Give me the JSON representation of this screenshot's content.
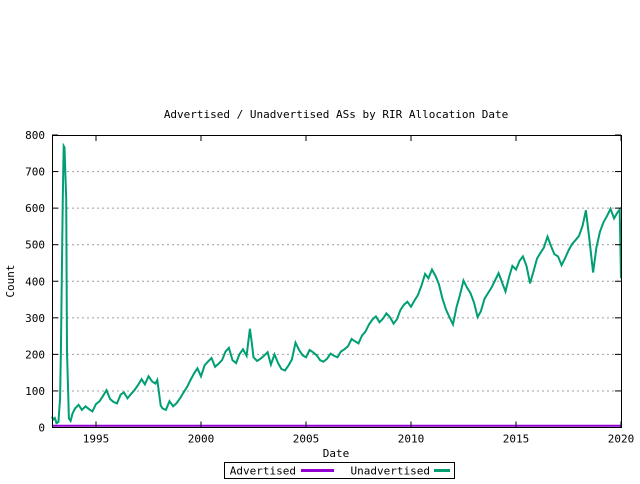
{
  "chart_data": {
    "type": "line",
    "title": "Advertised / Unadvertised ASs by RIR Allocation Date",
    "xlabel": "Date",
    "ylabel": "Count",
    "xlim": [
      1992.9,
      2020
    ],
    "ylim": [
      0,
      800
    ],
    "x_ticks": [
      1995,
      2000,
      2005,
      2010,
      2015,
      2020
    ],
    "y_ticks": [
      0,
      100,
      200,
      300,
      400,
      500,
      600,
      700,
      800
    ],
    "grid": "horizontal-dashed",
    "legend_position": "bottom-center-boxed",
    "colors": {
      "axis": "#000000",
      "grid": "#9e9e9e",
      "background": "#ffffff"
    },
    "series": [
      {
        "name": "Advertised",
        "color": "#9400d3",
        "points": [
          [
            1992.9,
            5
          ],
          [
            2020,
            5
          ]
        ]
      },
      {
        "name": "Unadvertised",
        "color": "#009e73",
        "points": [
          [
            1992.9,
            30
          ],
          [
            1992.96,
            22
          ],
          [
            1993.04,
            26
          ],
          [
            1993.12,
            12
          ],
          [
            1993.21,
            15
          ],
          [
            1993.29,
            80
          ],
          [
            1993.33,
            210
          ],
          [
            1993.42,
            630
          ],
          [
            1993.46,
            770
          ],
          [
            1993.5,
            766
          ],
          [
            1993.54,
            700
          ],
          [
            1993.58,
            628
          ],
          [
            1993.62,
            208
          ],
          [
            1993.71,
            25
          ],
          [
            1993.79,
            18
          ],
          [
            1993.88,
            38
          ],
          [
            1994.0,
            52
          ],
          [
            1994.17,
            62
          ],
          [
            1994.33,
            48
          ],
          [
            1994.5,
            58
          ],
          [
            1994.67,
            50
          ],
          [
            1994.83,
            44
          ],
          [
            1995.0,
            64
          ],
          [
            1995.17,
            72
          ],
          [
            1995.33,
            86
          ],
          [
            1995.5,
            102
          ],
          [
            1995.67,
            78
          ],
          [
            1995.83,
            70
          ],
          [
            1996.0,
            66
          ],
          [
            1996.17,
            90
          ],
          [
            1996.33,
            96
          ],
          [
            1996.5,
            80
          ],
          [
            1996.67,
            92
          ],
          [
            1996.83,
            102
          ],
          [
            1997.0,
            116
          ],
          [
            1997.17,
            132
          ],
          [
            1997.33,
            118
          ],
          [
            1997.5,
            140
          ],
          [
            1997.67,
            126
          ],
          [
            1997.83,
            120
          ],
          [
            1997.92,
            130
          ],
          [
            1998.0,
            95
          ],
          [
            1998.08,
            60
          ],
          [
            1998.17,
            52
          ],
          [
            1998.33,
            48
          ],
          [
            1998.5,
            72
          ],
          [
            1998.67,
            58
          ],
          [
            1998.83,
            66
          ],
          [
            1999.0,
            80
          ],
          [
            1999.17,
            96
          ],
          [
            1999.33,
            110
          ],
          [
            1999.5,
            130
          ],
          [
            1999.67,
            148
          ],
          [
            1999.83,
            162
          ],
          [
            2000.0,
            140
          ],
          [
            2000.17,
            170
          ],
          [
            2000.33,
            180
          ],
          [
            2000.5,
            190
          ],
          [
            2000.67,
            166
          ],
          [
            2000.83,
            174
          ],
          [
            2001.0,
            184
          ],
          [
            2001.17,
            208
          ],
          [
            2001.33,
            218
          ],
          [
            2001.5,
            184
          ],
          [
            2001.67,
            176
          ],
          [
            2001.83,
            200
          ],
          [
            2002.0,
            214
          ],
          [
            2002.17,
            196
          ],
          [
            2002.33,
            270
          ],
          [
            2002.42,
            232
          ],
          [
            2002.5,
            192
          ],
          [
            2002.67,
            182
          ],
          [
            2002.83,
            188
          ],
          [
            2003.0,
            196
          ],
          [
            2003.17,
            206
          ],
          [
            2003.33,
            172
          ],
          [
            2003.5,
            200
          ],
          [
            2003.67,
            176
          ],
          [
            2003.83,
            160
          ],
          [
            2004.0,
            156
          ],
          [
            2004.17,
            170
          ],
          [
            2004.33,
            186
          ],
          [
            2004.5,
            232
          ],
          [
            2004.67,
            212
          ],
          [
            2004.83,
            198
          ],
          [
            2005.0,
            192
          ],
          [
            2005.17,
            212
          ],
          [
            2005.33,
            206
          ],
          [
            2005.5,
            198
          ],
          [
            2005.67,
            184
          ],
          [
            2005.83,
            180
          ],
          [
            2006.0,
            188
          ],
          [
            2006.17,
            202
          ],
          [
            2006.33,
            196
          ],
          [
            2006.5,
            192
          ],
          [
            2006.67,
            208
          ],
          [
            2006.83,
            214
          ],
          [
            2007.0,
            222
          ],
          [
            2007.17,
            242
          ],
          [
            2007.33,
            236
          ],
          [
            2007.5,
            230
          ],
          [
            2007.67,
            252
          ],
          [
            2007.83,
            262
          ],
          [
            2008.0,
            282
          ],
          [
            2008.17,
            296
          ],
          [
            2008.33,
            304
          ],
          [
            2008.5,
            288
          ],
          [
            2008.67,
            298
          ],
          [
            2008.83,
            312
          ],
          [
            2009.0,
            302
          ],
          [
            2009.17,
            284
          ],
          [
            2009.33,
            296
          ],
          [
            2009.5,
            322
          ],
          [
            2009.67,
            336
          ],
          [
            2009.83,
            344
          ],
          [
            2010.0,
            330
          ],
          [
            2010.17,
            348
          ],
          [
            2010.33,
            362
          ],
          [
            2010.5,
            388
          ],
          [
            2010.67,
            420
          ],
          [
            2010.83,
            408
          ],
          [
            2011.0,
            432
          ],
          [
            2011.17,
            414
          ],
          [
            2011.33,
            392
          ],
          [
            2011.5,
            352
          ],
          [
            2011.67,
            322
          ],
          [
            2011.83,
            302
          ],
          [
            2012.0,
            282
          ],
          [
            2012.17,
            330
          ],
          [
            2012.33,
            362
          ],
          [
            2012.5,
            402
          ],
          [
            2012.67,
            382
          ],
          [
            2012.83,
            368
          ],
          [
            2013.0,
            342
          ],
          [
            2013.17,
            302
          ],
          [
            2013.33,
            318
          ],
          [
            2013.5,
            352
          ],
          [
            2013.67,
            368
          ],
          [
            2013.83,
            382
          ],
          [
            2014.0,
            402
          ],
          [
            2014.17,
            422
          ],
          [
            2014.33,
            398
          ],
          [
            2014.5,
            372
          ],
          [
            2014.67,
            412
          ],
          [
            2014.83,
            442
          ],
          [
            2015.0,
            432
          ],
          [
            2015.17,
            456
          ],
          [
            2015.33,
            468
          ],
          [
            2015.5,
            442
          ],
          [
            2015.67,
            394
          ],
          [
            2015.83,
            426
          ],
          [
            2016.0,
            462
          ],
          [
            2016.17,
            478
          ],
          [
            2016.33,
            492
          ],
          [
            2016.5,
            522
          ],
          [
            2016.67,
            496
          ],
          [
            2016.83,
            474
          ],
          [
            2017.0,
            468
          ],
          [
            2017.17,
            444
          ],
          [
            2017.33,
            462
          ],
          [
            2017.5,
            484
          ],
          [
            2017.67,
            502
          ],
          [
            2017.83,
            512
          ],
          [
            2018.0,
            524
          ],
          [
            2018.17,
            552
          ],
          [
            2018.33,
            594
          ],
          [
            2018.5,
            512
          ],
          [
            2018.67,
            424
          ],
          [
            2018.83,
            492
          ],
          [
            2019.0,
            536
          ],
          [
            2019.17,
            562
          ],
          [
            2019.33,
            578
          ],
          [
            2019.5,
            598
          ],
          [
            2019.67,
            572
          ],
          [
            2019.83,
            588
          ],
          [
            2019.94,
            596
          ],
          [
            2020.0,
            408
          ]
        ]
      }
    ]
  }
}
